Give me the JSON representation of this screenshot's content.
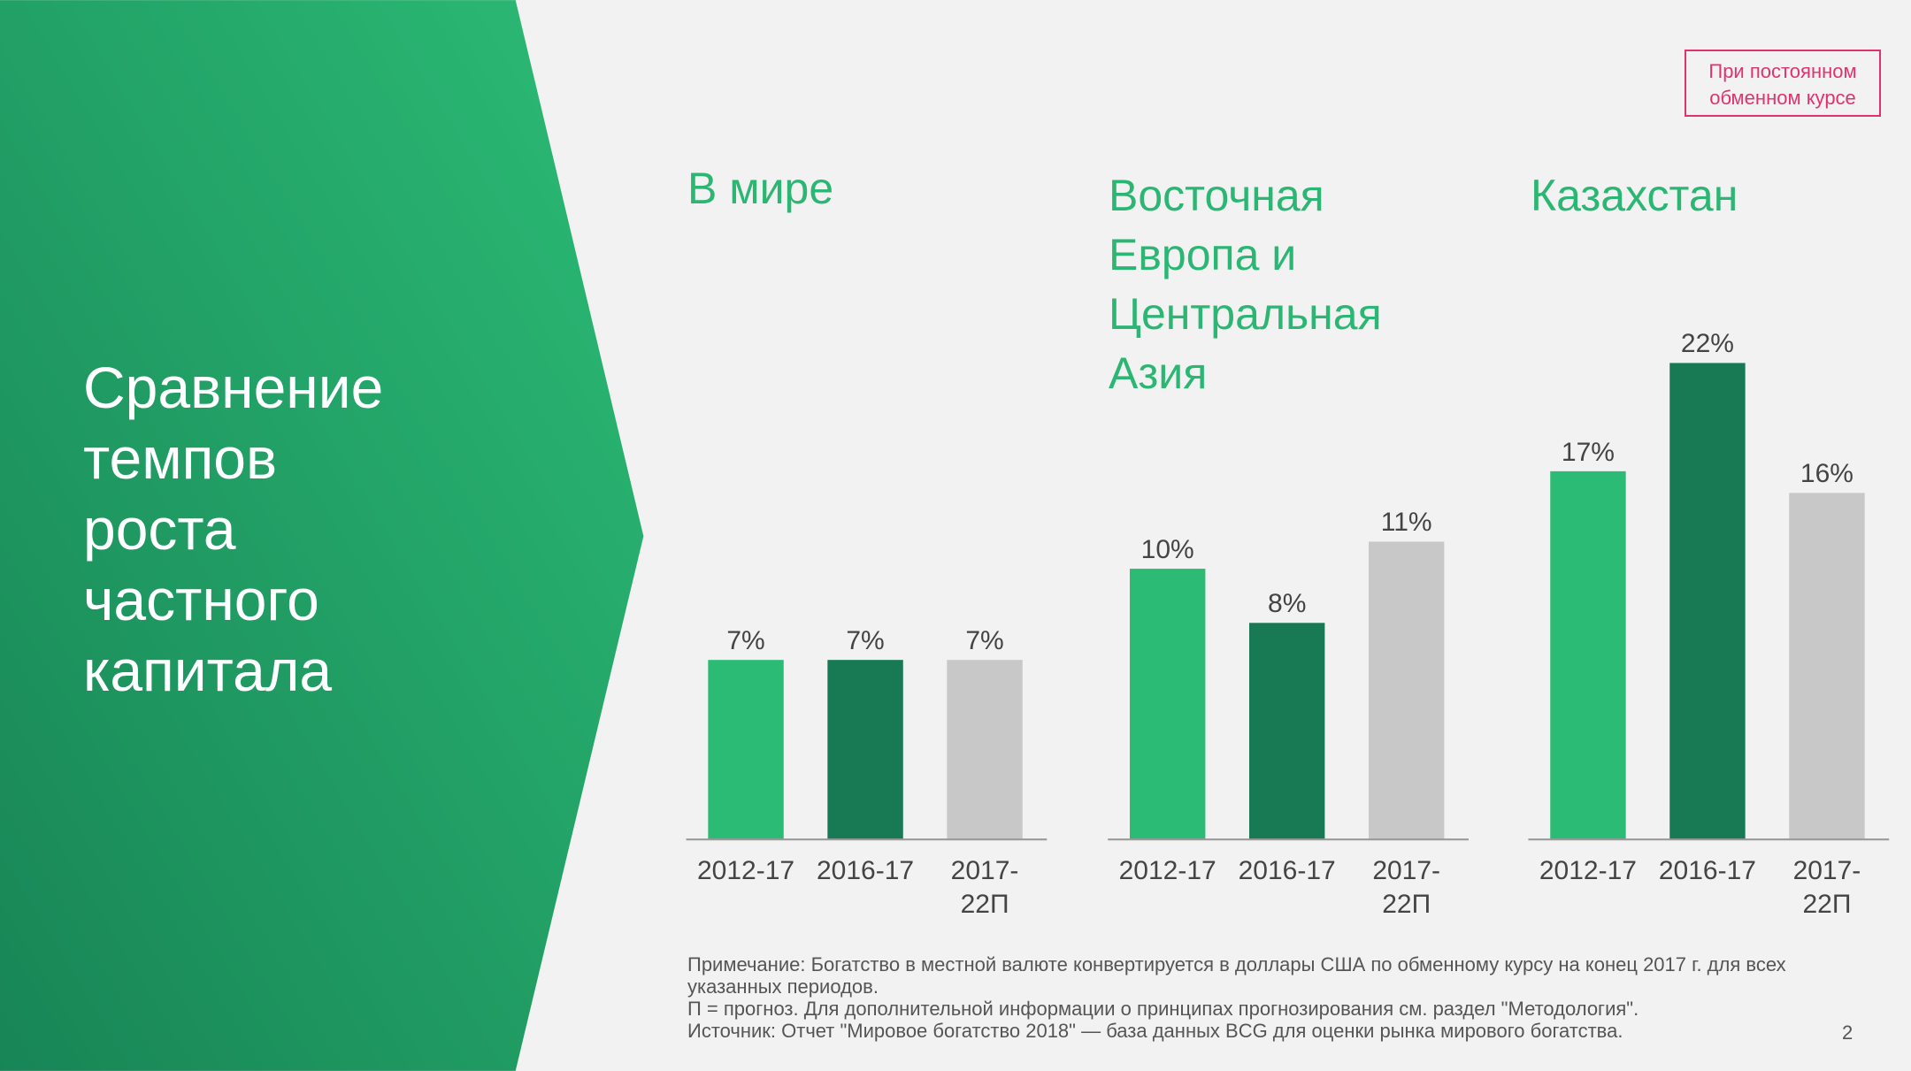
{
  "slide": {
    "title": "Сравнение темпов роста частного капитала",
    "badge": "При постоянном обменном курсе",
    "notes": [
      "Примечание: Богатство в местной валюте конвертируется в доллары США по обменному курсу на конец 2017 г. для всех указанных периодов.",
      "П = прогноз. Для дополнительной информации о принципах прогнозирования см. раздел \"Методология\".",
      "Источник: Отчет \"Мировое богатство 2018\" — база данных BCG для оценки рынка мирового богатства."
    ],
    "page_number": "2"
  },
  "chart_data": [
    {
      "type": "bar",
      "title": "В мире",
      "categories": [
        "2012-17",
        "2016-17",
        "2017-22П"
      ],
      "values": [
        7,
        7,
        7
      ],
      "value_labels": [
        "7%",
        "7%",
        "7%"
      ],
      "colors": [
        "#2bbb74",
        "#187a55",
        "#c8c8c8"
      ],
      "ylim": [
        0,
        19
      ]
    },
    {
      "type": "bar",
      "title": "Восточная Европа и Центральная Азия",
      "categories": [
        "2012-17",
        "2016-17",
        "2017-22П"
      ],
      "values": [
        10,
        8,
        11
      ],
      "value_labels": [
        "10%",
        "8%",
        "11%"
      ],
      "colors": [
        "#2bbb74",
        "#187a55",
        "#c8c8c8"
      ],
      "ylim": [
        0,
        18
      ]
    },
    {
      "type": "bar",
      "title": "Казахстан",
      "categories": [
        "2012-17",
        "2016-17",
        "2017-22П"
      ],
      "values": [
        17,
        22,
        16
      ],
      "value_labels": [
        "17%",
        "22%",
        "16%"
      ],
      "colors": [
        "#2bbb74",
        "#187a55",
        "#c8c8c8"
      ],
      "ylim": [
        0,
        22.5
      ]
    }
  ]
}
